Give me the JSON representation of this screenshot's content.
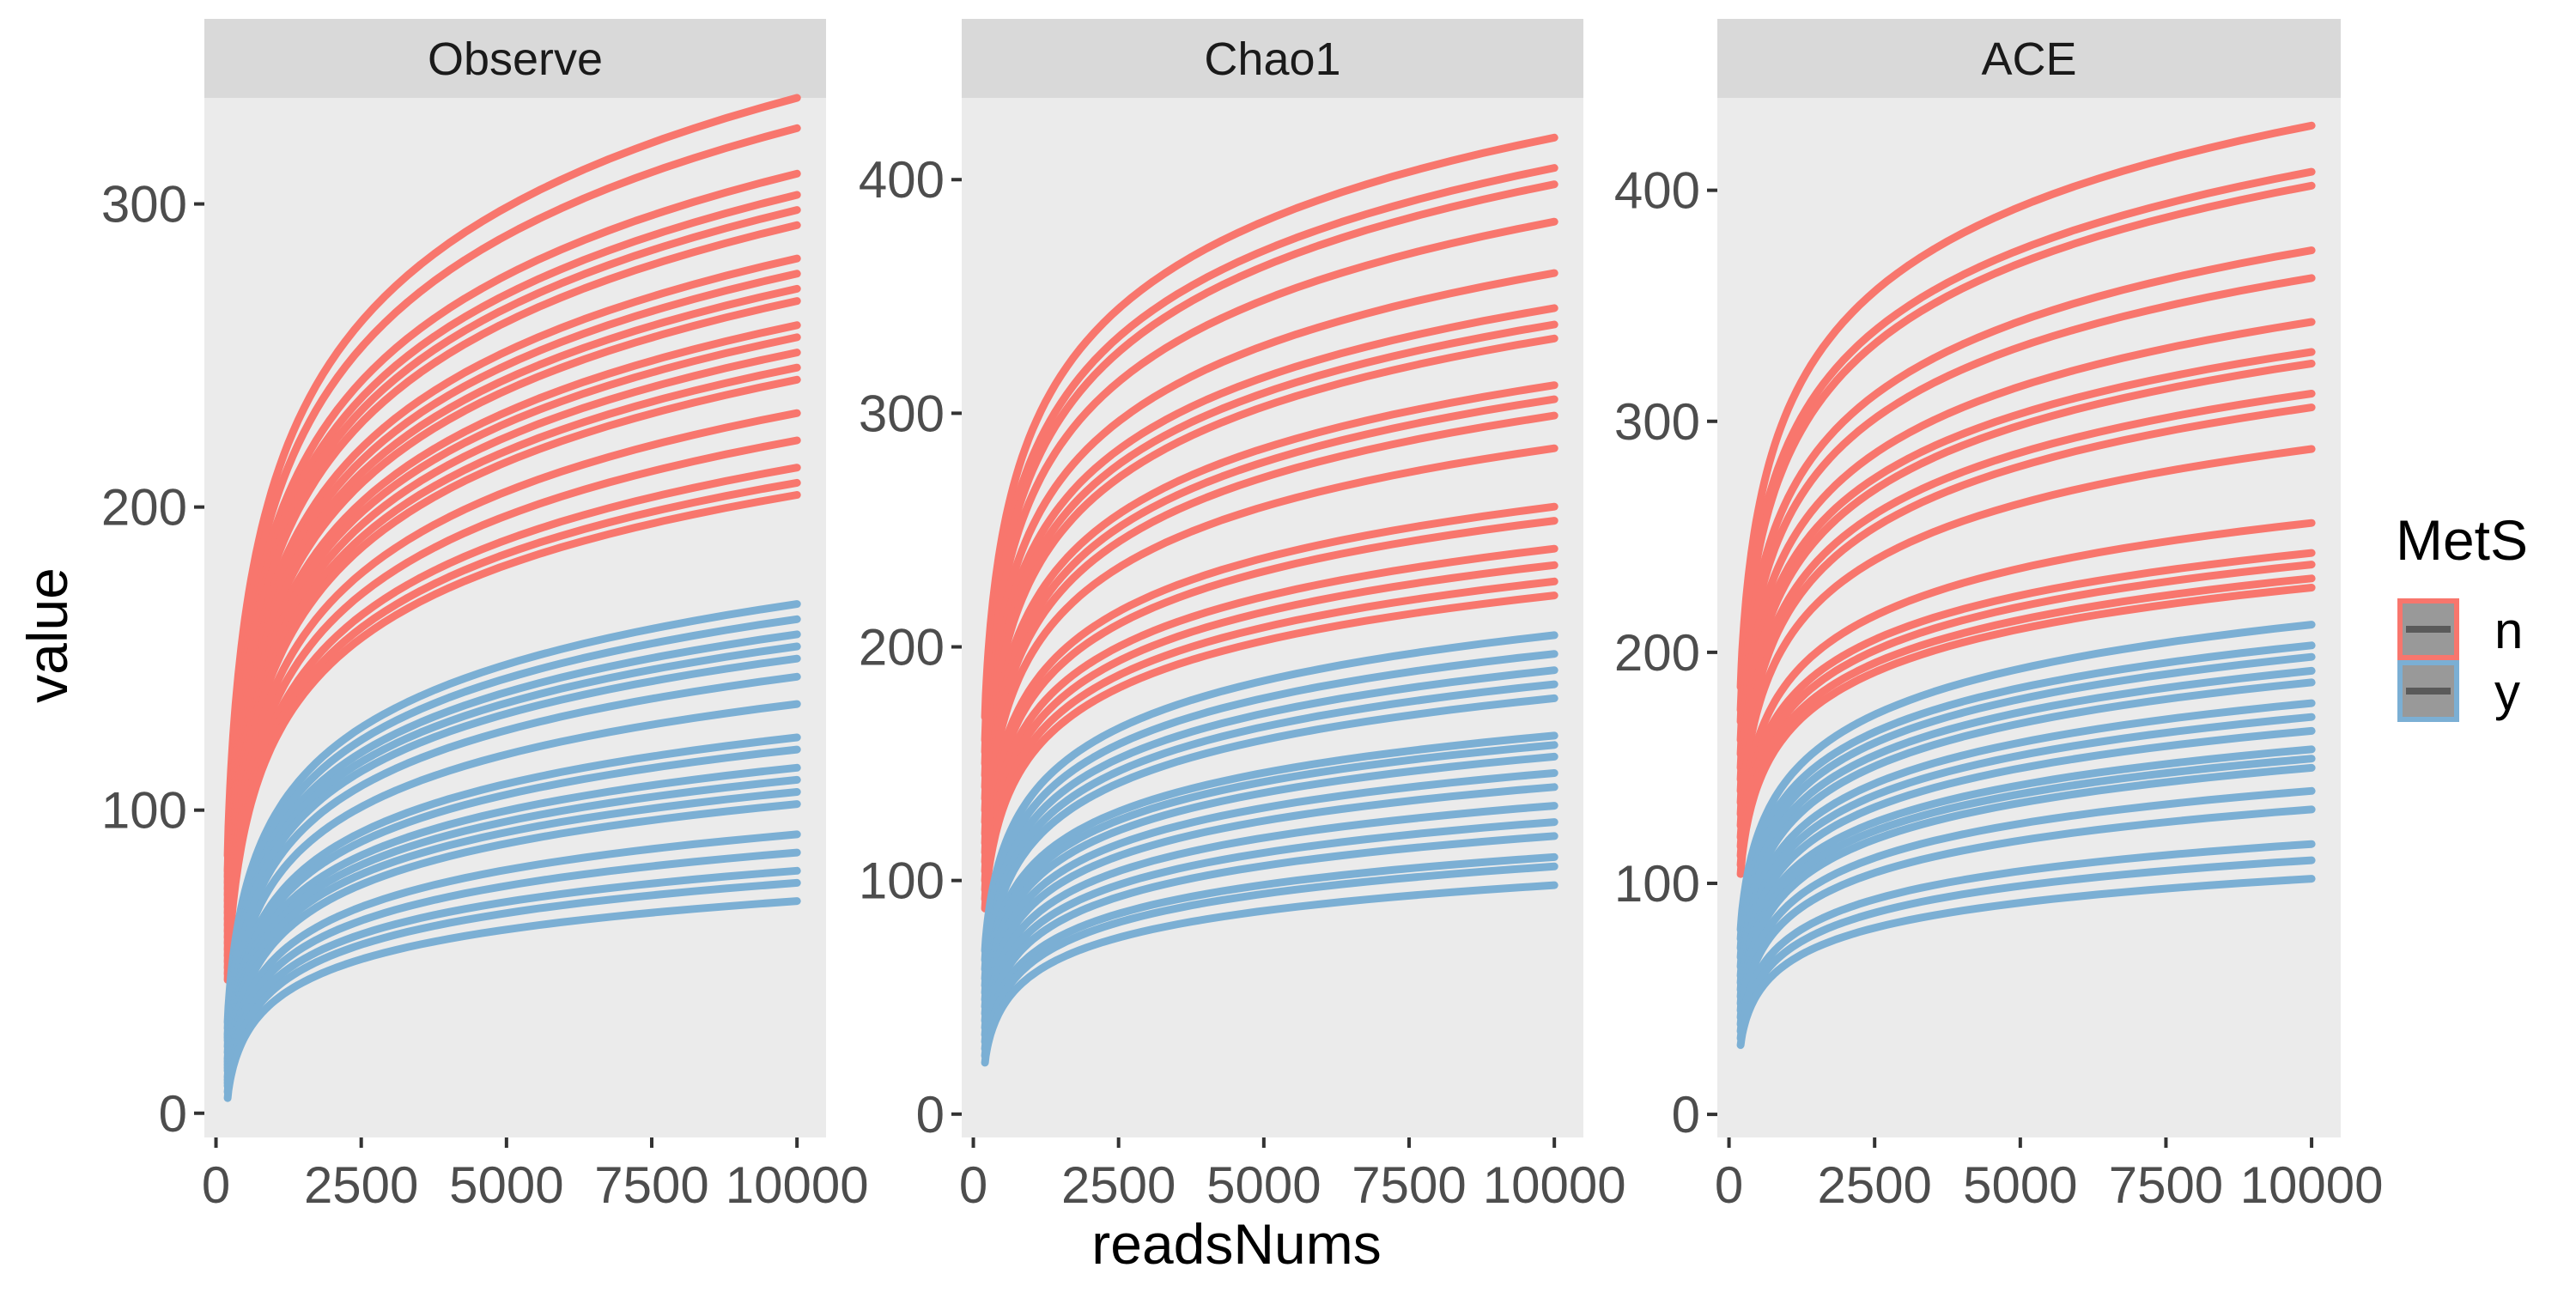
{
  "chart_data": {
    "type": "line",
    "xlabel": "readsNums",
    "ylabel": "value",
    "legend": {
      "title": "MetS",
      "position": "right",
      "entries": [
        {
          "name": "n",
          "color": "#F8766D"
        },
        {
          "name": "y",
          "color": "#7BAFD4"
        }
      ]
    },
    "colors": {
      "n": "#F8766D",
      "y": "#7BAFD4",
      "panel_bg": "#EBEBEB",
      "strip_bg": "#D9D9D9"
    },
    "x": [
      200,
      1000,
      2000,
      3000,
      4000,
      5000,
      6000,
      7000,
      8000,
      9000,
      10000
    ],
    "xlim": [
      -200,
      10500
    ],
    "xticks": [
      0,
      2500,
      5000,
      7500,
      10000
    ],
    "xtick_labels": [
      "0",
      "2500",
      "5000",
      "7500",
      "10000"
    ],
    "panels": [
      {
        "title": "Observe",
        "ylim": [
          -8,
          335
        ],
        "yticks": [
          0,
          100,
          200,
          300
        ],
        "ytick_labels": [
          "0",
          "100",
          "200",
          "300"
        ],
        "series": [
          {
            "group": "n",
            "start": 85,
            "end": 335
          },
          {
            "group": "n",
            "start": 80,
            "end": 325
          },
          {
            "group": "n",
            "start": 78,
            "end": 310
          },
          {
            "group": "n",
            "start": 76,
            "end": 303
          },
          {
            "group": "n",
            "start": 74,
            "end": 298
          },
          {
            "group": "n",
            "start": 72,
            "end": 293
          },
          {
            "group": "n",
            "start": 70,
            "end": 282
          },
          {
            "group": "n",
            "start": 68,
            "end": 277
          },
          {
            "group": "n",
            "start": 66,
            "end": 272
          },
          {
            "group": "n",
            "start": 64,
            "end": 268
          },
          {
            "group": "n",
            "start": 62,
            "end": 260
          },
          {
            "group": "n",
            "start": 60,
            "end": 256
          },
          {
            "group": "n",
            "start": 58,
            "end": 251
          },
          {
            "group": "n",
            "start": 56,
            "end": 246
          },
          {
            "group": "n",
            "start": 54,
            "end": 242
          },
          {
            "group": "n",
            "start": 52,
            "end": 231
          },
          {
            "group": "n",
            "start": 50,
            "end": 222
          },
          {
            "group": "n",
            "start": 48,
            "end": 213
          },
          {
            "group": "n",
            "start": 46,
            "end": 208
          },
          {
            "group": "n",
            "start": 44,
            "end": 204
          },
          {
            "group": "y",
            "start": 30,
            "end": 168
          },
          {
            "group": "y",
            "start": 28,
            "end": 163
          },
          {
            "group": "y",
            "start": 26,
            "end": 158
          },
          {
            "group": "y",
            "start": 25,
            "end": 154
          },
          {
            "group": "y",
            "start": 24,
            "end": 150
          },
          {
            "group": "y",
            "start": 22,
            "end": 144
          },
          {
            "group": "y",
            "start": 20,
            "end": 135
          },
          {
            "group": "y",
            "start": 18,
            "end": 124
          },
          {
            "group": "y",
            "start": 17,
            "end": 120
          },
          {
            "group": "y",
            "start": 16,
            "end": 114
          },
          {
            "group": "y",
            "start": 15,
            "end": 110
          },
          {
            "group": "y",
            "start": 14,
            "end": 106
          },
          {
            "group": "y",
            "start": 12,
            "end": 102
          },
          {
            "group": "y",
            "start": 11,
            "end": 92
          },
          {
            "group": "y",
            "start": 10,
            "end": 86
          },
          {
            "group": "y",
            "start": 9,
            "end": 80
          },
          {
            "group": "y",
            "start": 7,
            "end": 76
          },
          {
            "group": "y",
            "start": 5,
            "end": 70
          }
        ]
      },
      {
        "title": "Chao1",
        "ylim": [
          -10,
          435
        ],
        "yticks": [
          0,
          100,
          200,
          300,
          400
        ],
        "ytick_labels": [
          "0",
          "100",
          "200",
          "300",
          "400"
        ],
        "series": [
          {
            "group": "n",
            "start": 170,
            "end": 418
          },
          {
            "group": "n",
            "start": 160,
            "end": 405
          },
          {
            "group": "n",
            "start": 155,
            "end": 398
          },
          {
            "group": "n",
            "start": 150,
            "end": 382
          },
          {
            "group": "n",
            "start": 145,
            "end": 360
          },
          {
            "group": "n",
            "start": 140,
            "end": 345
          },
          {
            "group": "n",
            "start": 135,
            "end": 338
          },
          {
            "group": "n",
            "start": 130,
            "end": 332
          },
          {
            "group": "n",
            "start": 125,
            "end": 312
          },
          {
            "group": "n",
            "start": 120,
            "end": 306
          },
          {
            "group": "n",
            "start": 116,
            "end": 299
          },
          {
            "group": "n",
            "start": 112,
            "end": 285
          },
          {
            "group": "n",
            "start": 108,
            "end": 260
          },
          {
            "group": "n",
            "start": 104,
            "end": 254
          },
          {
            "group": "n",
            "start": 100,
            "end": 242
          },
          {
            "group": "n",
            "start": 96,
            "end": 235
          },
          {
            "group": "n",
            "start": 92,
            "end": 228
          },
          {
            "group": "n",
            "start": 88,
            "end": 222
          },
          {
            "group": "y",
            "start": 70,
            "end": 205
          },
          {
            "group": "y",
            "start": 66,
            "end": 197
          },
          {
            "group": "y",
            "start": 62,
            "end": 190
          },
          {
            "group": "y",
            "start": 58,
            "end": 184
          },
          {
            "group": "y",
            "start": 55,
            "end": 178
          },
          {
            "group": "y",
            "start": 52,
            "end": 162
          },
          {
            "group": "y",
            "start": 49,
            "end": 158
          },
          {
            "group": "y",
            "start": 46,
            "end": 153
          },
          {
            "group": "y",
            "start": 43,
            "end": 146
          },
          {
            "group": "y",
            "start": 40,
            "end": 140
          },
          {
            "group": "y",
            "start": 37,
            "end": 132
          },
          {
            "group": "y",
            "start": 34,
            "end": 125
          },
          {
            "group": "y",
            "start": 31,
            "end": 119
          },
          {
            "group": "y",
            "start": 28,
            "end": 110
          },
          {
            "group": "y",
            "start": 25,
            "end": 106
          },
          {
            "group": "y",
            "start": 22,
            "end": 98
          }
        ]
      },
      {
        "title": "ACE",
        "ylim": [
          -10,
          440
        ],
        "yticks": [
          0,
          100,
          200,
          300,
          400
        ],
        "ytick_labels": [
          "0",
          "100",
          "200",
          "300",
          "400"
        ],
        "series": [
          {
            "group": "n",
            "start": 185,
            "end": 428
          },
          {
            "group": "n",
            "start": 175,
            "end": 408
          },
          {
            "group": "n",
            "start": 170,
            "end": 402
          },
          {
            "group": "n",
            "start": 162,
            "end": 374
          },
          {
            "group": "n",
            "start": 156,
            "end": 362
          },
          {
            "group": "n",
            "start": 150,
            "end": 343
          },
          {
            "group": "n",
            "start": 145,
            "end": 330
          },
          {
            "group": "n",
            "start": 140,
            "end": 325
          },
          {
            "group": "n",
            "start": 135,
            "end": 312
          },
          {
            "group": "n",
            "start": 130,
            "end": 306
          },
          {
            "group": "n",
            "start": 125,
            "end": 288
          },
          {
            "group": "n",
            "start": 120,
            "end": 256
          },
          {
            "group": "n",
            "start": 116,
            "end": 243
          },
          {
            "group": "n",
            "start": 112,
            "end": 238
          },
          {
            "group": "n",
            "start": 108,
            "end": 232
          },
          {
            "group": "n",
            "start": 104,
            "end": 228
          },
          {
            "group": "y",
            "start": 80,
            "end": 212
          },
          {
            "group": "y",
            "start": 76,
            "end": 203
          },
          {
            "group": "y",
            "start": 72,
            "end": 198
          },
          {
            "group": "y",
            "start": 68,
            "end": 192
          },
          {
            "group": "y",
            "start": 64,
            "end": 187
          },
          {
            "group": "y",
            "start": 60,
            "end": 178
          },
          {
            "group": "y",
            "start": 57,
            "end": 172
          },
          {
            "group": "y",
            "start": 54,
            "end": 166
          },
          {
            "group": "y",
            "start": 51,
            "end": 158
          },
          {
            "group": "y",
            "start": 48,
            "end": 154
          },
          {
            "group": "y",
            "start": 45,
            "end": 150
          },
          {
            "group": "y",
            "start": 42,
            "end": 140
          },
          {
            "group": "y",
            "start": 39,
            "end": 132
          },
          {
            "group": "y",
            "start": 36,
            "end": 117
          },
          {
            "group": "y",
            "start": 33,
            "end": 110
          },
          {
            "group": "y",
            "start": 30,
            "end": 102
          }
        ]
      }
    ]
  }
}
